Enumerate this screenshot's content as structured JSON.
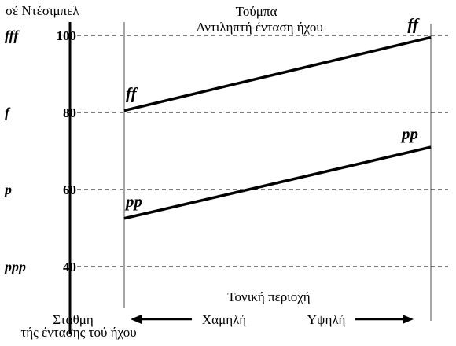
{
  "labels": {
    "unit": "σέ Ντέσιμπελ",
    "instrument": "Τούμπα",
    "subtitle": "Αντιληπτή ένταση ήχου",
    "range_title": "Τονική περιοχή",
    "low": "Χαμηλή",
    "high": "Υψηλή",
    "levels_line1": "Στάθμη",
    "levels_line2": "τής έντασης τού ήχου"
  },
  "y_ticks": [
    {
      "value": 100,
      "dynamic": "fff"
    },
    {
      "value": 80,
      "dynamic": "f"
    },
    {
      "value": 60,
      "dynamic": "p"
    },
    {
      "value": 40,
      "dynamic": "ppp"
    }
  ],
  "lines": [
    {
      "dynamic": "ff",
      "start_db": 80.5,
      "end_db": 99.5
    },
    {
      "dynamic": "pp",
      "start_db": 52.5,
      "end_db": 71.0
    }
  ]
}
